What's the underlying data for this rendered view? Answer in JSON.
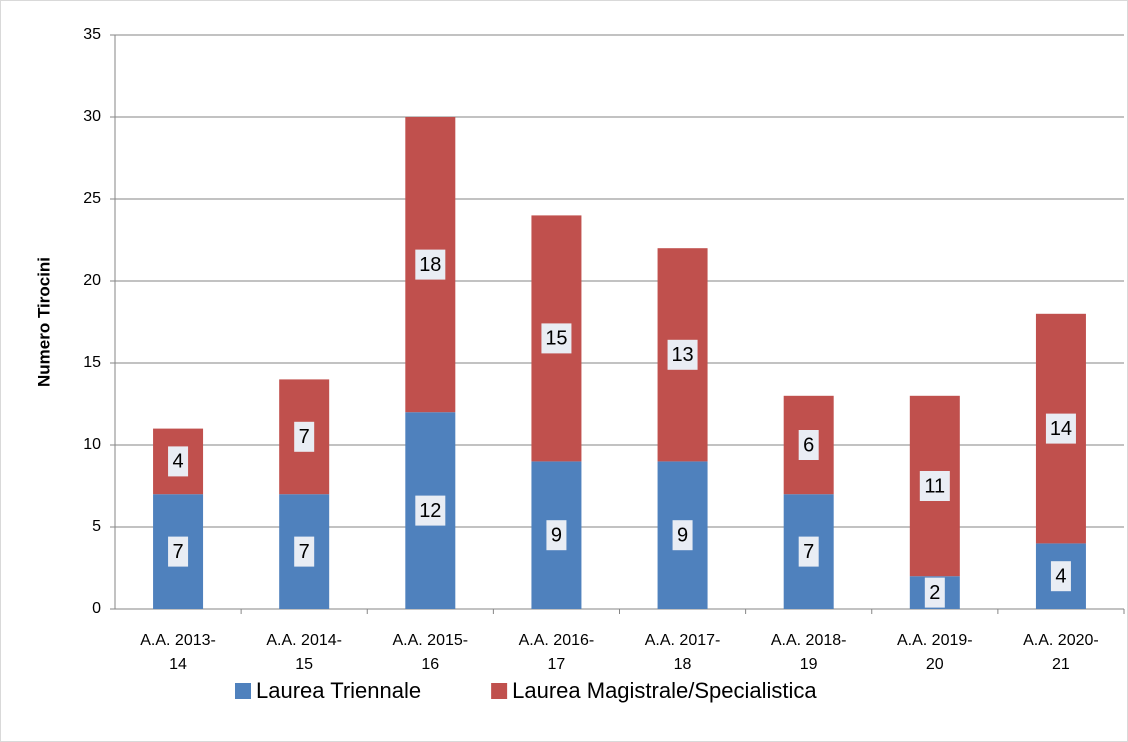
{
  "chart_data": {
    "type": "stacked_bar",
    "y_label": "Numero Tirocini",
    "categories": [
      "A.A. 2013-14",
      "A.A. 2014-15",
      "A.A. 2015-16",
      "A.A. 2016-17",
      "A.A. 2017-18",
      "A.A. 2018-19",
      "A.A. 2019-20",
      "A.A. 2020-21"
    ],
    "series": [
      {
        "name": "Laurea Triennale",
        "color": "#4f81bd",
        "values": [
          7,
          7,
          12,
          9,
          9,
          7,
          2,
          4
        ]
      },
      {
        "name": "Laurea Magistrale/Specialistica",
        "color": "#c0504d",
        "values": [
          4,
          7,
          18,
          15,
          13,
          6,
          11,
          14
        ]
      }
    ],
    "ylim": [
      0,
      35
    ],
    "yticks": [
      0,
      5,
      10,
      15,
      20,
      25,
      30,
      35
    ],
    "grid": true,
    "legend": "bottom"
  }
}
